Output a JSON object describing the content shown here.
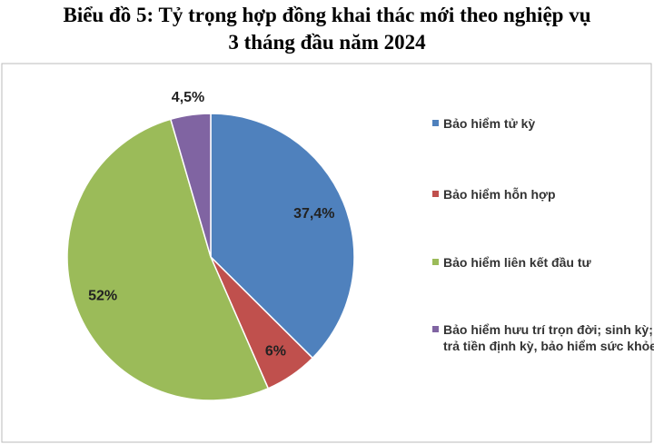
{
  "chart_data": {
    "type": "pie",
    "title": [
      "Biểu đồ 5: Tỷ trọng hợp đồng khai thác mới theo nghiệp vụ",
      "3 tháng đầu năm 2024"
    ],
    "categories": [
      "Bảo hiểm tử kỳ",
      "Bảo hiểm hỗn hợp",
      "Bảo hiểm liên kết đầu tư",
      "Bảo hiểm hưu trí trọn đời; sinh kỳ; trả tiền định kỳ, bảo hiểm sức khỏe"
    ],
    "values": [
      37.4,
      6,
      52,
      4.5
    ],
    "value_labels": [
      "37,4%",
      "6%",
      "52%",
      "4,5%"
    ],
    "colors": [
      "#4f81bd",
      "#c0504d",
      "#9bbb59",
      "#8064a2"
    ],
    "legend": "right"
  }
}
